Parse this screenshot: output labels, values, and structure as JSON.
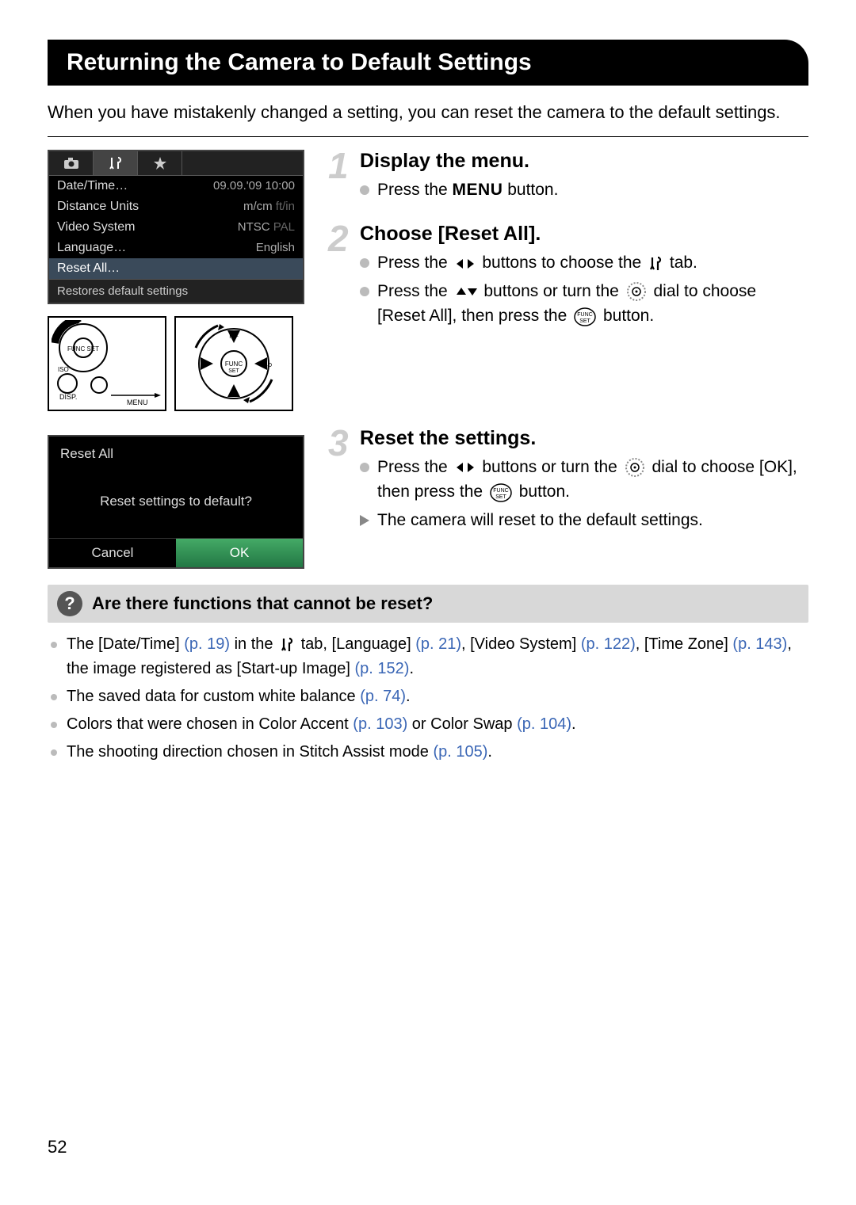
{
  "title": "Returning the Camera to Default Settings",
  "intro": "When you have mistakenly changed a setting, you can reset the camera to the default settings.",
  "menu": {
    "rows": [
      {
        "label": "Date/Time…",
        "value": "09.09.'09 10:00"
      },
      {
        "label": "Distance Units",
        "value": "m/cm",
        "dim": "ft/in"
      },
      {
        "label": "Video System",
        "value": "NTSC",
        "dim": "PAL"
      },
      {
        "label": "Language…",
        "value": "English"
      },
      {
        "label": "Reset All…",
        "value": ""
      }
    ],
    "hint": "Restores default settings"
  },
  "confirm": {
    "title": "Reset All",
    "question": "Reset settings to default?",
    "cancel": "Cancel",
    "ok": "OK"
  },
  "steps": [
    {
      "num": "1",
      "title": "Display the menu.",
      "items": [
        {
          "type": "circle",
          "pre": "Press the ",
          "menu": "MENU",
          "post": " button."
        }
      ]
    },
    {
      "num": "2",
      "title": "Choose [Reset All].",
      "items": [
        {
          "type": "circle",
          "pre": "Press the ",
          "icons": "lr",
          "mid": " buttons to choose the ",
          "icons2": "tools",
          "post": " tab."
        },
        {
          "type": "circle",
          "pre": "Press the ",
          "icons": "ud",
          "mid": " buttons or turn the ",
          "icons2": "dial",
          "mid2": " dial to choose [Reset All], then press the ",
          "icons3": "func",
          "post": " button."
        }
      ]
    },
    {
      "num": "3",
      "title": "Reset the settings.",
      "items": [
        {
          "type": "circle",
          "pre": "Press the ",
          "icons": "lr",
          "mid": " buttons or turn the ",
          "icons2": "dial",
          "mid2": " dial to choose [OK], then press the ",
          "icons3": "func",
          "post": " button."
        },
        {
          "type": "tri",
          "text": "The camera will reset to the default settings."
        }
      ]
    }
  ],
  "qbox": {
    "title": "Are there functions that cannot be reset?",
    "notes": [
      {
        "parts": [
          "The [Date/Time] ",
          {
            "ref": "(p. 19)"
          },
          " in the ",
          {
            "icon": "tools"
          },
          " tab, [Language] ",
          {
            "ref": "(p. 21)"
          },
          ", [Video System] ",
          {
            "ref": "(p. 122)"
          },
          ", [Time Zone] ",
          {
            "ref": "(p. 143)"
          },
          ", the image registered as [Start-up Image] ",
          {
            "ref": "(p. 152)"
          },
          "."
        ]
      },
      {
        "parts": [
          "The saved data for custom white balance ",
          {
            "ref": "(p. 74)"
          },
          "."
        ]
      },
      {
        "parts": [
          "Colors that were chosen in Color Accent ",
          {
            "ref": "(p. 103)"
          },
          " or Color Swap ",
          {
            "ref": "(p. 104)"
          },
          "."
        ]
      },
      {
        "parts": [
          "The shooting direction chosen in Stitch Assist mode ",
          {
            "ref": "(p. 105)"
          },
          "."
        ]
      }
    ]
  },
  "pageNum": "52",
  "colors": {
    "pref": "#3a66b5",
    "grey_num": "#cccccc"
  }
}
